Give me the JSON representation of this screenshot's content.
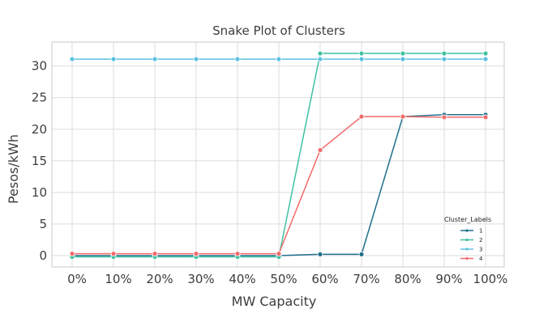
{
  "chart_data": {
    "type": "line",
    "title": "Snake Plot of Clusters",
    "xlabel": "MW Capacity",
    "ylabel": "Pesos/kWh",
    "categories": [
      "0%",
      "10%",
      "20%",
      "30%",
      "40%",
      "50%",
      "60%",
      "70%",
      "80%",
      "90%",
      "100%"
    ],
    "ylim": [
      -1.8,
      33.8
    ],
    "yticks": [
      0,
      5,
      10,
      15,
      20,
      25,
      30
    ],
    "grid": true,
    "legend": {
      "title": "Cluster_Labels",
      "placement": "lower-right"
    },
    "series": [
      {
        "name": "1",
        "color": "#1f6f8b",
        "values": [
          0.0,
          0.0,
          0.0,
          0.0,
          0.0,
          0.0,
          0.2,
          0.2,
          22.0,
          22.3,
          22.3
        ]
      },
      {
        "name": "2",
        "color": "#3fc0a3",
        "values": [
          -0.2,
          -0.2,
          -0.2,
          -0.2,
          -0.2,
          -0.2,
          32.0,
          32.0,
          32.0,
          32.0,
          32.0
        ]
      },
      {
        "name": "3",
        "color": "#5bc0e0",
        "values": [
          31.1,
          31.1,
          31.1,
          31.1,
          31.1,
          31.1,
          31.1,
          31.1,
          31.1,
          31.1,
          31.1
        ]
      },
      {
        "name": "4",
        "color": "#f26b6b",
        "values": [
          0.3,
          0.3,
          0.3,
          0.3,
          0.3,
          0.3,
          16.7,
          22.0,
          22.0,
          21.9,
          21.9
        ]
      }
    ]
  }
}
